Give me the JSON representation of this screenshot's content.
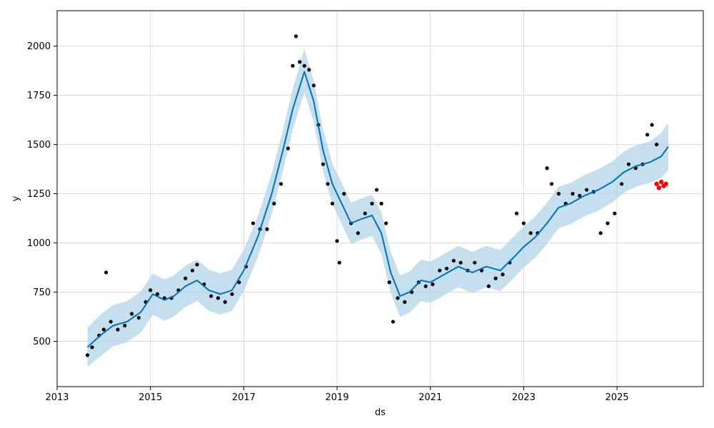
{
  "chart_data": {
    "type": "line",
    "title": "",
    "xlabel": "ds",
    "ylabel": "y",
    "xlim": [
      2013.0,
      2026.85
    ],
    "ylim": [
      270,
      2180
    ],
    "x_ticks": [
      2013,
      2015,
      2017,
      2019,
      2021,
      2023,
      2025
    ],
    "x_tick_labels": [
      "2013",
      "2015",
      "2017",
      "2019",
      "2021",
      "2023",
      "2025"
    ],
    "y_ticks": [
      500,
      750,
      1000,
      1250,
      1500,
      1750,
      2000
    ],
    "y_tick_labels": [
      "500",
      "750",
      "1000",
      "1250",
      "1500",
      "1750",
      "2000"
    ],
    "grid": true,
    "colors": {
      "forecast": "#0072b2",
      "interval": "#b3d4ea",
      "observed": "#000000",
      "recent": "#ff0000",
      "grid": "#d9d9d9"
    },
    "series": [
      {
        "kind": "forecast_line",
        "x": [
          2013.65,
          2013.9,
          2014.2,
          2014.5,
          2014.8,
          2015.05,
          2015.3,
          2015.5,
          2015.75,
          2016.0,
          2016.25,
          2016.5,
          2016.75,
          2017.0,
          2017.3,
          2017.6,
          2017.85,
          2018.05,
          2018.3,
          2018.5,
          2018.7,
          2018.9,
          2019.1,
          2019.3,
          2019.5,
          2019.75,
          2019.95,
          2020.15,
          2020.35,
          2020.55,
          2020.8,
          2021.0,
          2021.3,
          2021.6,
          2021.9,
          2022.2,
          2022.5,
          2022.8,
          2023.0,
          2023.25,
          2023.5,
          2023.75,
          2024.0,
          2024.3,
          2024.6,
          2024.9,
          2025.15,
          2025.4,
          2025.7,
          2025.95,
          2026.1
        ],
        "y": [
          470,
          525,
          580,
          600,
          650,
          740,
          710,
          730,
          780,
          810,
          760,
          740,
          760,
          860,
          1030,
          1250,
          1480,
          1680,
          1870,
          1720,
          1470,
          1300,
          1200,
          1100,
          1120,
          1140,
          1050,
          850,
          730,
          750,
          810,
          800,
          840,
          880,
          850,
          880,
          860,
          930,
          980,
          1030,
          1100,
          1180,
          1200,
          1240,
          1270,
          1310,
          1360,
          1390,
          1410,
          1440,
          1490
        ]
      },
      {
        "kind": "interval_upper",
        "x": [
          2013.65,
          2013.9,
          2014.2,
          2014.5,
          2014.8,
          2015.05,
          2015.3,
          2015.5,
          2015.75,
          2016.0,
          2016.25,
          2016.5,
          2016.75,
          2017.0,
          2017.3,
          2017.6,
          2017.85,
          2018.05,
          2018.3,
          2018.5,
          2018.7,
          2018.9,
          2019.1,
          2019.3,
          2019.5,
          2019.75,
          2019.95,
          2020.15,
          2020.35,
          2020.55,
          2020.8,
          2021.0,
          2021.3,
          2021.6,
          2021.9,
          2022.2,
          2022.5,
          2022.8,
          2023.0,
          2023.25,
          2023.5,
          2023.75,
          2024.0,
          2024.3,
          2024.6,
          2024.9,
          2025.15,
          2025.4,
          2025.7,
          2025.95,
          2026.1
        ],
        "y": [
          570,
          630,
          685,
          705,
          755,
          845,
          815,
          835,
          885,
          915,
          865,
          845,
          865,
          965,
          1135,
          1355,
          1585,
          1785,
          1985,
          1825,
          1575,
          1405,
          1305,
          1205,
          1225,
          1245,
          1155,
          955,
          835,
          855,
          915,
          905,
          945,
          985,
          955,
          985,
          965,
          1035,
          1085,
          1135,
          1205,
          1285,
          1305,
          1345,
          1375,
          1415,
          1465,
          1495,
          1515,
          1560,
          1610
        ]
      },
      {
        "kind": "interval_lower",
        "x": [
          2013.65,
          2013.9,
          2014.2,
          2014.5,
          2014.8,
          2015.05,
          2015.3,
          2015.5,
          2015.75,
          2016.0,
          2016.25,
          2016.5,
          2016.75,
          2017.0,
          2017.3,
          2017.6,
          2017.85,
          2018.05,
          2018.3,
          2018.5,
          2018.7,
          2018.9,
          2019.1,
          2019.3,
          2019.5,
          2019.75,
          2019.95,
          2020.15,
          2020.35,
          2020.55,
          2020.8,
          2021.0,
          2021.3,
          2021.6,
          2021.9,
          2022.2,
          2022.5,
          2022.8,
          2023.0,
          2023.25,
          2023.5,
          2023.75,
          2024.0,
          2024.3,
          2024.6,
          2024.9,
          2025.15,
          2025.4,
          2025.7,
          2025.95,
          2026.1
        ],
        "y": [
          370,
          420,
          475,
          495,
          545,
          635,
          605,
          625,
          675,
          705,
          655,
          635,
          655,
          755,
          925,
          1145,
          1375,
          1575,
          1765,
          1615,
          1365,
          1195,
          1095,
          995,
          1015,
          1035,
          945,
          745,
          625,
          645,
          705,
          695,
          735,
          775,
          745,
          775,
          755,
          825,
          875,
          925,
          995,
          1075,
          1095,
          1135,
          1165,
          1205,
          1255,
          1285,
          1305,
          1330,
          1370
        ]
      },
      {
        "kind": "observed",
        "x": [
          2013.65,
          2013.75,
          2013.9,
          2014.0,
          2014.05,
          2014.15,
          2014.3,
          2014.45,
          2014.6,
          2014.75,
          2014.9,
          2015.0,
          2015.15,
          2015.3,
          2015.45,
          2015.6,
          2015.75,
          2015.9,
          2016.0,
          2016.15,
          2016.3,
          2016.45,
          2016.6,
          2016.75,
          2016.9,
          2017.05,
          2017.2,
          2017.35,
          2017.5,
          2017.65,
          2017.8,
          2017.95,
          2018.05,
          2018.12,
          2018.2,
          2018.3,
          2018.4,
          2018.5,
          2018.6,
          2018.7,
          2018.8,
          2018.9,
          2019.0,
          2019.05,
          2019.15,
          2019.3,
          2019.45,
          2019.6,
          2019.75,
          2019.85,
          2019.95,
          2020.05,
          2020.12,
          2020.2,
          2020.3,
          2020.45,
          2020.6,
          2020.75,
          2020.9,
          2021.05,
          2021.2,
          2021.35,
          2021.5,
          2021.65,
          2021.8,
          2021.95,
          2022.1,
          2022.25,
          2022.4,
          2022.55,
          2022.7,
          2022.85,
          2023.0,
          2023.15,
          2023.3,
          2023.5,
          2023.6,
          2023.75,
          2023.9,
          2024.05,
          2024.2,
          2024.35,
          2024.5,
          2024.65,
          2024.8,
          2024.95,
          2025.1,
          2025.25,
          2025.4,
          2025.55,
          2025.65,
          2025.75,
          2025.85
        ],
        "y": [
          430,
          470,
          530,
          560,
          850,
          600,
          560,
          580,
          640,
          620,
          700,
          760,
          740,
          720,
          720,
          760,
          820,
          860,
          890,
          790,
          730,
          720,
          700,
          740,
          800,
          880,
          1100,
          1070,
          1070,
          1200,
          1300,
          1480,
          1900,
          2050,
          1920,
          1900,
          1880,
          1800,
          1600,
          1400,
          1300,
          1200,
          1010,
          900,
          1250,
          1100,
          1050,
          1150,
          1200,
          1270,
          1200,
          1100,
          800,
          600,
          720,
          700,
          750,
          800,
          780,
          790,
          860,
          870,
          910,
          900,
          860,
          900,
          860,
          780,
          820,
          840,
          900,
          1150,
          1100,
          1050,
          1050,
          1380,
          1300,
          1250,
          1200,
          1250,
          1240,
          1270,
          1260,
          1050,
          1100,
          1150,
          1300,
          1400,
          1380,
          1400,
          1550,
          1600,
          1500
        ]
      },
      {
        "kind": "recent",
        "x": [
          2025.85,
          2025.9,
          2025.95,
          2026.0,
          2026.05
        ],
        "y": [
          1300,
          1280,
          1310,
          1290,
          1300
        ]
      }
    ]
  }
}
